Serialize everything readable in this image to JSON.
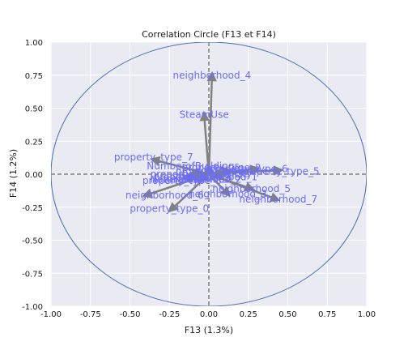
{
  "chart_data": {
    "type": "scatter",
    "title": "Correlation Circle (F13 et F14)",
    "xlabel": "F13 (1.3%)",
    "ylabel": "F14 (1.2%)",
    "xlim": [
      -1.0,
      1.0
    ],
    "ylim": [
      -1.0,
      1.0
    ],
    "xticks": [
      "-1.00",
      "-0.75",
      "-0.50",
      "-0.25",
      "0.00",
      "0.25",
      "0.50",
      "0.75",
      "1.00"
    ],
    "yticks": [
      "1.00",
      "0.75",
      "0.50",
      "0.25",
      "0.00",
      "-0.25",
      "-0.50",
      "-0.75",
      "-1.00"
    ],
    "xtick_values": [
      -1.0,
      -0.75,
      -0.5,
      -0.25,
      0.0,
      0.25,
      0.5,
      0.75,
      1.0
    ],
    "ytick_values": [
      1.0,
      0.75,
      0.5,
      0.25,
      0.0,
      -0.25,
      -0.5,
      -0.75,
      -1.0
    ],
    "grid": true,
    "unit_circle": true,
    "colors": {
      "background": "#eaeaf2",
      "grid": "#ffffff",
      "circle": "#4c72b0",
      "arrow": "#808080",
      "label": "#6b6bff",
      "dashed": "#808080"
    },
    "vectors": [
      {
        "name": "neighborhood_4",
        "x": 0.02,
        "y": 0.75,
        "lx": 0.02,
        "ly": 0.75
      },
      {
        "name": "SteamUse",
        "x": -0.03,
        "y": 0.45,
        "lx": -0.03,
        "ly": 0.45
      },
      {
        "name": "property_type_7",
        "x": -0.35,
        "y": 0.11,
        "lx": -0.35,
        "ly": 0.13
      },
      {
        "name": "property_type_5",
        "x": 0.45,
        "y": 0.03,
        "lx": 0.45,
        "ly": 0.02
      },
      {
        "name": "property_type_6",
        "x": 0.3,
        "y": 0.04,
        "lx": 0.25,
        "ly": 0.04
      },
      {
        "name": "neighborhood_6",
        "x": -0.4,
        "y": -0.16,
        "lx": -0.28,
        "ly": -0.16
      },
      {
        "name": "property_type_0",
        "x": -0.24,
        "y": -0.27,
        "lx": -0.25,
        "ly": -0.26
      },
      {
        "name": "neighborhood_7",
        "x": 0.43,
        "y": -0.19,
        "lx": 0.44,
        "ly": -0.19
      },
      {
        "name": "neighborhood_5",
        "x": 0.27,
        "y": -0.11,
        "lx": 0.27,
        "ly": -0.11
      },
      {
        "name": "neighborhood_3",
        "x": 0.12,
        "y": -0.15,
        "lx": 0.12,
        "ly": -0.15
      },
      {
        "name": "NumberofBuildings",
        "x": 0.0,
        "y": 0.05,
        "lx": -0.1,
        "ly": 0.06
      },
      {
        "name": "property_type_2",
        "x": 0.12,
        "y": 0.03,
        "lx": 0.08,
        "ly": 0.05
      },
      {
        "name": "property_type_1",
        "x": 0.08,
        "y": 0.01,
        "lx": 0.04,
        "ly": 0.02
      },
      {
        "name": "property_type_3",
        "x": -0.1,
        "y": 0.01,
        "lx": -0.12,
        "ly": 0.0
      },
      {
        "name": "property_type_4",
        "x": -0.08,
        "y": -0.03,
        "lx": -0.1,
        "ly": -0.02
      },
      {
        "name": "neighborhood_1",
        "x": 0.05,
        "y": -0.02,
        "lx": 0.06,
        "ly": -0.02
      },
      {
        "name": "neighborhood_2",
        "x": -0.05,
        "y": -0.04,
        "lx": -0.04,
        "ly": -0.04
      },
      {
        "name": "Electricity",
        "x": 0.1,
        "y": 0.0,
        "lx": 0.12,
        "ly": 0.0
      },
      {
        "name": "NaturalGas",
        "x": -0.12,
        "y": -0.02,
        "lx": -0.2,
        "ly": -0.04
      },
      {
        "name": "property_type_8",
        "x": -0.15,
        "y": -0.03,
        "lx": -0.17,
        "ly": -0.05
      }
    ]
  }
}
